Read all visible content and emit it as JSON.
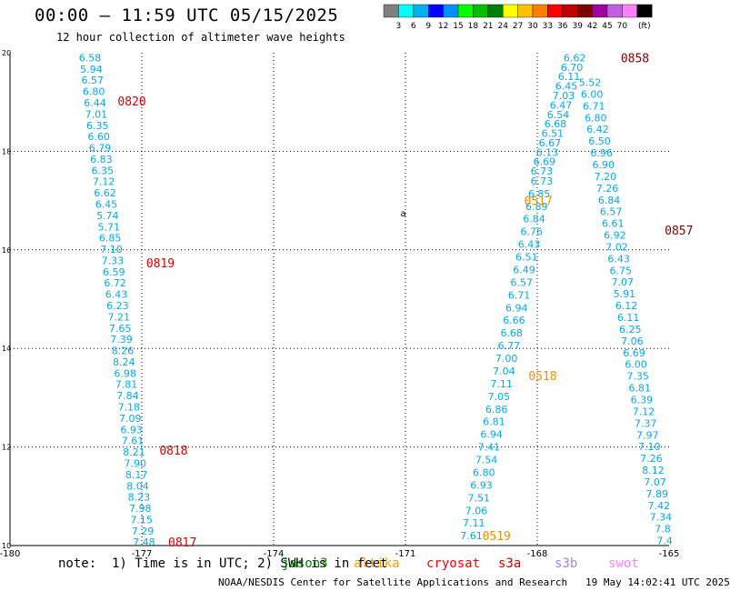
{
  "header": {
    "title": "00:00 – 11:59 UTC 05/15/2025",
    "subtitle": "12 hour collection of altimeter wave heights"
  },
  "colorbar": {
    "colors": [
      "#808080",
      "#00ffff",
      "#00b0f0",
      "#0000ff",
      "#0090ff",
      "#00ff00",
      "#00c000",
      "#008000",
      "#ffff00",
      "#ffc000",
      "#ff8000",
      "#ff0000",
      "#c00000",
      "#800000",
      "#a000a0",
      "#c060e0",
      "#ff80ff",
      "#000000"
    ],
    "labels": [
      "3",
      "6",
      "9",
      "12",
      "15",
      "18",
      "21",
      "24",
      "27",
      "30",
      "33",
      "36",
      "39",
      "42",
      "45",
      "70",
      "(ft)"
    ]
  },
  "note": "note:  1) Time is in UTC; 2) SWH is in feet",
  "satellites": [
    {
      "name": "jason3",
      "color": "#008000"
    },
    {
      "name": "altika",
      "color": "#ffa000"
    },
    {
      "name": "cryosat",
      "color": "#ff0000"
    },
    {
      "name": "s3a",
      "color": "#cc0000"
    },
    {
      "name": "s3b",
      "color": "#b080e0"
    },
    {
      "name": "swot",
      "color": "#ff80ff"
    }
  ],
  "footer": "NOAA/NESDIS Center for Satellite Applications and Research   19 May 14:02:41 UTC 2025",
  "chart_data": {
    "type": "scatter",
    "title": "00:00 – 11:59 UTC 05/15/2025",
    "subtitle": "12 hour collection of altimeter wave heights",
    "xlabel": "",
    "ylabel": "",
    "xlim": [
      -180,
      -165
    ],
    "ylim": [
      10,
      20
    ],
    "xticks": [
      "-180",
      "-177",
      "-174",
      "-171",
      "-168",
      "-165"
    ],
    "yticks": [
      "10",
      "12",
      "14",
      "16",
      "18",
      "20"
    ],
    "grid": true,
    "point_color": "#00aaee",
    "tracks": [
      {
        "time_labels": [
          {
            "text": "0820",
            "lon": -177.55,
            "lat": 19.02,
            "color": "#dd0000"
          },
          {
            "text": "0819",
            "lon": -176.9,
            "lat": 15.74,
            "color": "#dd0000"
          },
          {
            "text": "0818",
            "lon": -176.6,
            "lat": 11.94,
            "color": "#dd0000"
          },
          {
            "text": "0817",
            "lon": -176.4,
            "lat": 10.07,
            "color": "#dd0000"
          }
        ],
        "lon_start": -178.18,
        "lon_end": -176.95,
        "lat_start": 19.9,
        "lat_end": 10.07,
        "values": [
          "6.58",
          "5.94",
          "6.57",
          "6.80",
          "6.44",
          "7.01",
          "6.35",
          "6.60",
          "6.79",
          "6.83",
          "6.35",
          "7.12",
          "6.62",
          "6.45",
          "5.74",
          "5.71",
          "6.85",
          "7.10",
          "7.33",
          "6.59",
          "6.72",
          "6.43",
          "6.23",
          "7.21",
          "7.65",
          "7.39",
          "8.26",
          "8.24",
          "6.98",
          "7.81",
          "7.84",
          "7.18",
          "7.09",
          "6.93",
          "7.61",
          "8.21",
          "7.90",
          "8.17",
          "8.04",
          "8.23",
          "7.98",
          "7.15",
          "7.29",
          "7.48"
        ]
      },
      {
        "time_labels": [
          {
            "text": "0517",
            "lon": -168.3,
            "lat": 17.0,
            "color": "#ee9000"
          },
          {
            "text": "0518",
            "lon": -168.2,
            "lat": 13.45,
            "color": "#ee9000"
          },
          {
            "text": "0519",
            "lon": -169.25,
            "lat": 10.2,
            "color": "#ee9000"
          }
        ],
        "lon_start": -167.9,
        "lon_end": -169.5,
        "lat_start": 17.4,
        "lat_end": 10.2,
        "values": [
          "6.73",
          "6.85",
          "6.89",
          "6.84",
          "6.76",
          "6.43",
          "6.51",
          "6.49",
          "6.57",
          "6.71",
          "6.94",
          "6.66",
          "6.68",
          "6.77",
          "7.00",
          "7.04",
          "7.11",
          "7.05",
          "6.86",
          "6.81",
          "6.94",
          "7.41",
          "7.54",
          "6.80",
          "6.93",
          "7.51",
          "7.06",
          "7.11",
          "7.61"
        ]
      },
      {
        "time_labels": [
          {
            "text": "0858",
            "lon": -166.1,
            "lat": 19.9,
            "color": "#800000"
          },
          {
            "text": "0857",
            "lon": -165.1,
            "lat": 16.4,
            "color": "#800000"
          }
        ],
        "lon_start": -167.15,
        "lon_end": -167.9,
        "lat_start": 19.9,
        "lat_end": 17.6,
        "values": [
          "6.62",
          "6.70",
          "6.11",
          "6.45",
          "7.03",
          "6.47",
          "6.54",
          "6.68",
          "6.51",
          "6.67",
          "6.13",
          "6.69",
          "6.73"
        ]
      },
      {
        "time_labels": [],
        "lon_start": -166.8,
        "lon_end": -165.1,
        "lat_start": 19.4,
        "lat_end": 10.1,
        "values": [
          "5.52",
          "6.00",
          "6.71",
          "6.80",
          "6.42",
          "6.50",
          "6.96",
          "6.90",
          "7.20",
          "7.26",
          "6.84",
          "6.57",
          "6.61",
          "6.92",
          "7.02",
          "6.43",
          "6.75",
          "7.07",
          "5.91",
          "6.12",
          "6.11",
          "6.25",
          "7.06",
          "6.69",
          "6.00",
          "7.35",
          "6.81",
          "6.39",
          "7.12",
          "7.37",
          "7.97",
          "7.10",
          "7.26",
          "8.12",
          "7.07",
          "7.89",
          "7.42",
          "7.34",
          "7.8",
          "7.4"
        ]
      }
    ],
    "symbols": [
      {
        "text": "a",
        "lon": -171.05,
        "lat": 16.75
      }
    ]
  }
}
